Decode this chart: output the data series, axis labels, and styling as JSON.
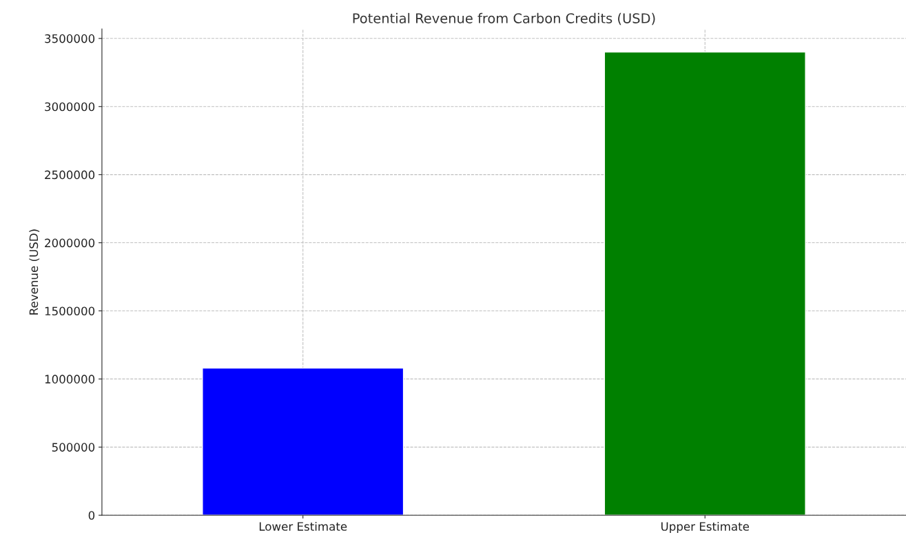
{
  "chart_data": {
    "type": "bar",
    "title": "Potential Revenue from Carbon Credits (USD)",
    "ylabel": "Revenue (USD)",
    "categories": [
      "Lower Estimate",
      "Upper Estimate"
    ],
    "values": [
      1080000,
      3400000
    ],
    "colors": [
      "#0000ff",
      "#008000"
    ],
    "ylim": [
      0,
      3570000
    ],
    "yticks": [
      0,
      500000,
      1000000,
      1500000,
      2000000,
      2500000,
      3000000,
      3500000
    ],
    "grid": true
  }
}
